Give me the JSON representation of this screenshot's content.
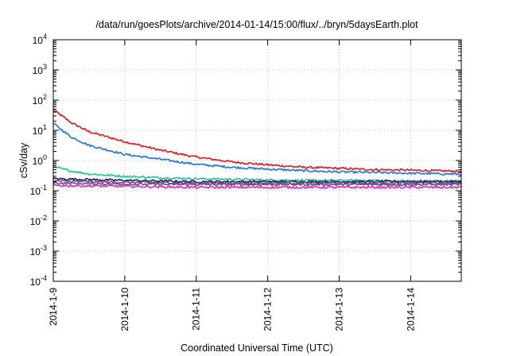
{
  "chart_data": {
    "type": "line",
    "title": "/data/run/goesPlots/archive/2014-01-14/15:00/flux/../bryn/5daysEarth.plot",
    "xlabel": "Coordinated Universal Time (UTC)",
    "ylabel": "cSv/day",
    "xlim": [
      "2014-01-09T00:00",
      "2014-01-14T17:00"
    ],
    "x_ticks": [
      {
        "label": "2014-1-9",
        "value": "2014-01-09T00:00"
      },
      {
        "label": "2014-1-10",
        "value": "2014-01-10T00:00"
      },
      {
        "label": "2014-1-11",
        "value": "2014-01-11T00:00"
      },
      {
        "label": "2014-1-12",
        "value": "2014-01-12T00:00"
      },
      {
        "label": "2014-1-13",
        "value": "2014-01-13T00:00"
      },
      {
        "label": "2014-1-14",
        "value": "2014-01-14T00:00"
      }
    ],
    "y_scale": "log",
    "ylim": [
      0.0001,
      10000
    ],
    "y_ticks": [
      {
        "base": "10",
        "exp": "4",
        "value": 10000
      },
      {
        "base": "10",
        "exp": "3",
        "value": 1000
      },
      {
        "base": "10",
        "exp": "2",
        "value": 100
      },
      {
        "base": "10",
        "exp": "1",
        "value": 10
      },
      {
        "base": "10",
        "exp": "0",
        "value": 1
      },
      {
        "base": "10",
        "exp": "-1",
        "value": 0.1
      },
      {
        "base": "10",
        "exp": "-2",
        "value": 0.01
      },
      {
        "base": "10",
        "exp": "-3",
        "value": 0.001
      },
      {
        "base": "10",
        "exp": "-4",
        "value": 0.0001
      }
    ],
    "grid": true,
    "legend": "none",
    "series": [
      {
        "color": "#e8141e",
        "x": [
          "2014-01-09T00:00",
          "2014-01-09T06:00",
          "2014-01-09T12:00",
          "2014-01-10T00:00",
          "2014-01-10T12:00",
          "2014-01-11T00:00",
          "2014-01-11T12:00",
          "2014-01-12T00:00",
          "2014-01-12T12:00",
          "2014-01-13T00:00",
          "2014-01-13T12:00",
          "2014-01-14T00:00",
          "2014-01-14T12:00",
          "2014-01-14T17:00"
        ],
        "values": [
          48,
          18,
          9,
          4.2,
          2.2,
          1.3,
          0.9,
          0.72,
          0.6,
          0.55,
          0.5,
          0.48,
          0.45,
          0.44
        ]
      },
      {
        "color": "#1f6fe8",
        "x": [
          "2014-01-09T00:00",
          "2014-01-09T06:00",
          "2014-01-09T12:00",
          "2014-01-10T00:00",
          "2014-01-10T12:00",
          "2014-01-11T00:00",
          "2014-01-11T12:00",
          "2014-01-12T00:00",
          "2014-01-12T12:00",
          "2014-01-13T00:00",
          "2014-01-13T12:00",
          "2014-01-14T00:00",
          "2014-01-14T12:00",
          "2014-01-14T17:00"
        ],
        "values": [
          17,
          6,
          3.2,
          1.6,
          1.1,
          0.75,
          0.6,
          0.52,
          0.46,
          0.42,
          0.4,
          0.38,
          0.36,
          0.35
        ]
      },
      {
        "color": "#1ec49a",
        "x": [
          "2014-01-09T00:00",
          "2014-01-09T06:00",
          "2014-01-09T12:00",
          "2014-01-10T00:00",
          "2014-01-10T12:00",
          "2014-01-11T00:00",
          "2014-01-11T12:00",
          "2014-01-12T00:00",
          "2014-01-12T12:00",
          "2014-01-13T00:00",
          "2014-01-13T12:00",
          "2014-01-14T00:00",
          "2014-01-14T12:00",
          "2014-01-14T17:00"
        ],
        "values": [
          0.62,
          0.45,
          0.36,
          0.3,
          0.27,
          0.25,
          0.24,
          0.23,
          0.22,
          0.22,
          0.22,
          0.21,
          0.21,
          0.21
        ]
      },
      {
        "color": "#1a1a6e",
        "x": [
          "2014-01-09T00:00",
          "2014-01-10T00:00",
          "2014-01-11T00:00",
          "2014-01-12T00:00",
          "2014-01-13T00:00",
          "2014-01-14T00:00",
          "2014-01-14T17:00"
        ],
        "values": [
          0.25,
          0.22,
          0.2,
          0.2,
          0.2,
          0.2,
          0.2
        ]
      },
      {
        "color": "#8a3a8a",
        "x": [
          "2014-01-09T00:00",
          "2014-01-10T00:00",
          "2014-01-11T00:00",
          "2014-01-12T00:00",
          "2014-01-13T00:00",
          "2014-01-14T00:00",
          "2014-01-14T17:00"
        ],
        "values": [
          0.21,
          0.19,
          0.18,
          0.18,
          0.18,
          0.18,
          0.18
        ]
      },
      {
        "color": "#5a5a5a",
        "x": [
          "2014-01-09T00:00",
          "2014-01-10T00:00",
          "2014-01-11T00:00",
          "2014-01-12T00:00",
          "2014-01-13T00:00",
          "2014-01-14T00:00",
          "2014-01-14T17:00"
        ],
        "values": [
          0.18,
          0.165,
          0.16,
          0.16,
          0.16,
          0.16,
          0.16
        ]
      },
      {
        "color": "#e21ee2",
        "x": [
          "2014-01-09T00:00",
          "2014-01-10T00:00",
          "2014-01-11T00:00",
          "2014-01-12T00:00",
          "2014-01-13T00:00",
          "2014-01-14T00:00",
          "2014-01-14T17:00"
        ],
        "values": [
          0.15,
          0.14,
          0.13,
          0.13,
          0.13,
          0.13,
          0.13
        ]
      }
    ]
  }
}
